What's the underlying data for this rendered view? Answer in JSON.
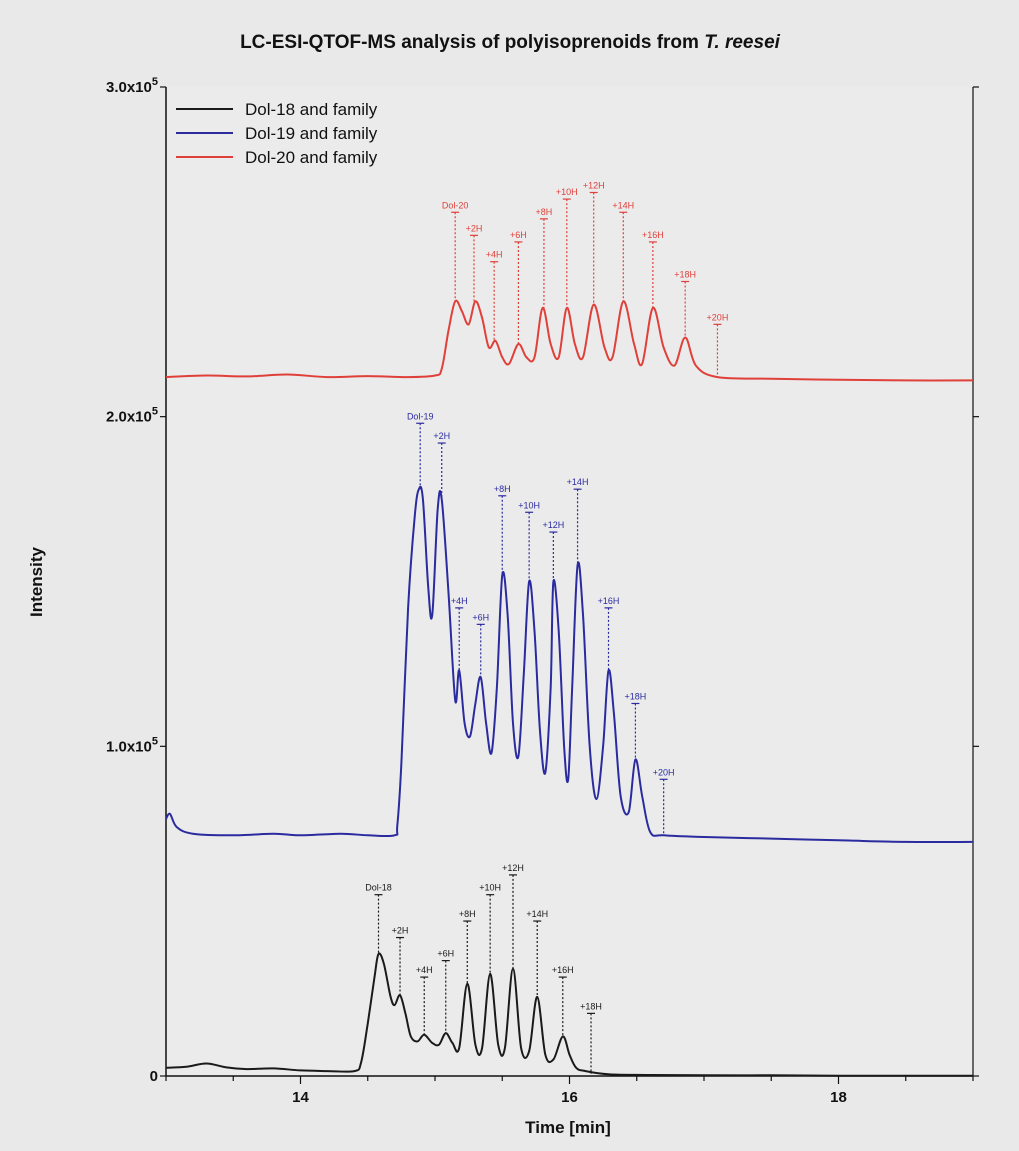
{
  "chart_data": {
    "type": "line",
    "title_main": "LC-ESI-QTOF-MS analysis of polyisoprenoids from ",
    "title_species": "T. reesei",
    "xlabel": "Time [min]",
    "ylabel": "Intensity",
    "xlim": [
      13,
      19
    ],
    "ylim": [
      0,
      300000
    ],
    "x_ticks": [
      {
        "value": 14,
        "label": "14"
      },
      {
        "value": 16,
        "label": "16"
      },
      {
        "value": 18,
        "label": "18"
      }
    ],
    "y_ticks": [
      {
        "value": 0,
        "base": "0",
        "exp": ""
      },
      {
        "value": 100000,
        "base": "1.0x10",
        "exp": "5"
      },
      {
        "value": 200000,
        "base": "2.0x10",
        "exp": "5"
      },
      {
        "value": 300000,
        "base": "3.0x10",
        "exp": "5"
      }
    ],
    "grid": false,
    "legend_position": "top-left",
    "series": [
      {
        "name": "Dol-18 and family",
        "color": "#1a1a1a",
        "points": [
          [
            13.0,
            2500
          ],
          [
            13.15,
            2800
          ],
          [
            13.3,
            3800
          ],
          [
            13.45,
            2600
          ],
          [
            13.6,
            2100
          ],
          [
            13.8,
            2300
          ],
          [
            14.0,
            1700
          ],
          [
            14.2,
            1500
          ],
          [
            14.4,
            1500
          ],
          [
            14.45,
            4000
          ],
          [
            14.5,
            16000
          ],
          [
            14.55,
            30000
          ],
          [
            14.58,
            37000
          ],
          [
            14.62,
            34000
          ],
          [
            14.67,
            24000
          ],
          [
            14.7,
            21500
          ],
          [
            14.74,
            24500
          ],
          [
            14.78,
            19000
          ],
          [
            14.82,
            12000
          ],
          [
            14.87,
            10500
          ],
          [
            14.92,
            12500
          ],
          [
            14.98,
            10000
          ],
          [
            15.03,
            9500
          ],
          [
            15.08,
            13000
          ],
          [
            15.13,
            10000
          ],
          [
            15.18,
            8500
          ],
          [
            15.24,
            28000
          ],
          [
            15.3,
            9500
          ],
          [
            15.35,
            8500
          ],
          [
            15.41,
            31000
          ],
          [
            15.47,
            9500
          ],
          [
            15.52,
            8500
          ],
          [
            15.58,
            32500
          ],
          [
            15.64,
            8500
          ],
          [
            15.7,
            7500
          ],
          [
            15.76,
            24000
          ],
          [
            15.82,
            6500
          ],
          [
            15.88,
            5000
          ],
          [
            15.95,
            12000
          ],
          [
            16.0,
            6500
          ],
          [
            16.05,
            2500
          ],
          [
            16.12,
            1500
          ],
          [
            16.3,
            500
          ],
          [
            16.6,
            300
          ],
          [
            17.0,
            200
          ],
          [
            17.5,
            200
          ],
          [
            18.0,
            100
          ],
          [
            18.5,
            100
          ],
          [
            19.0,
            100
          ]
        ]
      },
      {
        "name": "Dol-19 and family",
        "color": "#2b2ba0",
        "points": [
          [
            13.0,
            78000
          ],
          [
            13.03,
            79500
          ],
          [
            13.08,
            75500
          ],
          [
            13.2,
            73500
          ],
          [
            13.5,
            73000
          ],
          [
            13.8,
            73500
          ],
          [
            14.0,
            73000
          ],
          [
            14.3,
            73500
          ],
          [
            14.5,
            73000
          ],
          [
            14.7,
            73000
          ],
          [
            14.72,
            76000
          ],
          [
            14.75,
            95000
          ],
          [
            14.8,
            142000
          ],
          [
            14.85,
            170000
          ],
          [
            14.88,
            178000
          ],
          [
            14.91,
            175000
          ],
          [
            14.95,
            148000
          ],
          [
            14.98,
            140000
          ],
          [
            15.02,
            172000
          ],
          [
            15.05,
            175000
          ],
          [
            15.1,
            147000
          ],
          [
            15.15,
            114000
          ],
          [
            15.18,
            123000
          ],
          [
            15.22,
            107000
          ],
          [
            15.26,
            103000
          ],
          [
            15.3,
            113000
          ],
          [
            15.34,
            121000
          ],
          [
            15.38,
            107000
          ],
          [
            15.42,
            98000
          ],
          [
            15.46,
            118000
          ],
          [
            15.5,
            152000
          ],
          [
            15.54,
            140000
          ],
          [
            15.58,
            107000
          ],
          [
            15.62,
            97000
          ],
          [
            15.66,
            122000
          ],
          [
            15.7,
            150000
          ],
          [
            15.74,
            135000
          ],
          [
            15.78,
            105000
          ],
          [
            15.82,
            92000
          ],
          [
            15.86,
            118000
          ],
          [
            15.88,
            150000
          ],
          [
            15.92,
            135000
          ],
          [
            15.96,
            100000
          ],
          [
            15.99,
            90000
          ],
          [
            16.02,
            118000
          ],
          [
            16.06,
            155000
          ],
          [
            16.1,
            140000
          ],
          [
            16.15,
            100000
          ],
          [
            16.2,
            84000
          ],
          [
            16.25,
            100000
          ],
          [
            16.29,
            123000
          ],
          [
            16.33,
            110000
          ],
          [
            16.38,
            85000
          ],
          [
            16.44,
            80000
          ],
          [
            16.49,
            96000
          ],
          [
            16.54,
            85000
          ],
          [
            16.6,
            74000
          ],
          [
            16.7,
            73000
          ],
          [
            17.0,
            72500
          ],
          [
            17.5,
            72000
          ],
          [
            18.0,
            71500
          ],
          [
            18.5,
            71000
          ],
          [
            19.0,
            71000
          ]
        ]
      },
      {
        "name": "Dol-20 and family",
        "color": "#e0403a",
        "points": [
          [
            13.0,
            212000
          ],
          [
            13.3,
            212500
          ],
          [
            13.6,
            212200
          ],
          [
            13.9,
            212800
          ],
          [
            14.2,
            212000
          ],
          [
            14.5,
            212300
          ],
          [
            14.8,
            212000
          ],
          [
            15.0,
            212500
          ],
          [
            15.05,
            214500
          ],
          [
            15.1,
            226000
          ],
          [
            15.15,
            235000
          ],
          [
            15.2,
            232000
          ],
          [
            15.25,
            228000
          ],
          [
            15.3,
            235000
          ],
          [
            15.35,
            230000
          ],
          [
            15.4,
            221000
          ],
          [
            15.45,
            223000
          ],
          [
            15.5,
            218000
          ],
          [
            15.55,
            216000
          ],
          [
            15.62,
            222000
          ],
          [
            15.68,
            218000
          ],
          [
            15.74,
            218000
          ],
          [
            15.8,
            233000
          ],
          [
            15.86,
            222000
          ],
          [
            15.92,
            218000
          ],
          [
            15.98,
            233000
          ],
          [
            16.04,
            222000
          ],
          [
            16.1,
            218000
          ],
          [
            16.18,
            234000
          ],
          [
            16.26,
            221000
          ],
          [
            16.32,
            218000
          ],
          [
            16.4,
            235000
          ],
          [
            16.48,
            222000
          ],
          [
            16.54,
            216000
          ],
          [
            16.62,
            233000
          ],
          [
            16.7,
            221000
          ],
          [
            16.78,
            215500
          ],
          [
            16.86,
            224000
          ],
          [
            16.94,
            215500
          ],
          [
            17.1,
            212000
          ],
          [
            17.5,
            211500
          ],
          [
            18.0,
            211200
          ],
          [
            18.5,
            211000
          ],
          [
            19.0,
            211000
          ]
        ]
      }
    ],
    "annotations": [
      {
        "series": 2,
        "label": "Dol-20",
        "x": 15.15,
        "y_peak": 235000,
        "y_top": 262000
      },
      {
        "series": 2,
        "label": "+2H",
        "x": 15.29,
        "y_peak": 234000,
        "y_top": 255000
      },
      {
        "series": 2,
        "label": "+4H",
        "x": 15.44,
        "y_peak": 223000,
        "y_top": 247000
      },
      {
        "series": 2,
        "label": "+6H",
        "x": 15.62,
        "y_peak": 222000,
        "y_top": 253000
      },
      {
        "series": 2,
        "label": "+8H",
        "x": 15.81,
        "y_peak": 233000,
        "y_top": 260000
      },
      {
        "series": 2,
        "label": "+10H",
        "x": 15.98,
        "y_peak": 233000,
        "y_top": 266000
      },
      {
        "series": 2,
        "label": "+12H",
        "x": 16.18,
        "y_peak": 234000,
        "y_top": 268000
      },
      {
        "series": 2,
        "label": "+14H",
        "x": 16.4,
        "y_peak": 235000,
        "y_top": 262000
      },
      {
        "series": 2,
        "label": "+16H",
        "x": 16.62,
        "y_peak": 233000,
        "y_top": 253000
      },
      {
        "series": 2,
        "label": "+18H",
        "x": 16.86,
        "y_peak": 224000,
        "y_top": 241000
      },
      {
        "series": 2,
        "label": "+20H",
        "x": 17.1,
        "y_peak": 212000,
        "y_top": 228000
      },
      {
        "series": 1,
        "label": "Dol-19",
        "x": 14.89,
        "y_peak": 178000,
        "y_top": 198000
      },
      {
        "series": 1,
        "label": "+2H",
        "x": 15.05,
        "y_peak": 175000,
        "y_top": 192000
      },
      {
        "series": 1,
        "label": "+4H",
        "x": 15.18,
        "y_peak": 123000,
        "y_top": 142000
      },
      {
        "series": 1,
        "label": "+6H",
        "x": 15.34,
        "y_peak": 121000,
        "y_top": 137000
      },
      {
        "series": 1,
        "label": "+8H",
        "x": 15.5,
        "y_peak": 152000,
        "y_top": 176000
      },
      {
        "series": 1,
        "label": "+10H",
        "x": 15.7,
        "y_peak": 150000,
        "y_top": 171000
      },
      {
        "series": 1,
        "label": "+12H",
        "x": 15.88,
        "y_peak": 150000,
        "y_top": 165000
      },
      {
        "series": 1,
        "label": "+14H",
        "x": 16.06,
        "y_peak": 155000,
        "y_top": 178000
      },
      {
        "series": 1,
        "label": "+16H",
        "x": 16.29,
        "y_peak": 123000,
        "y_top": 142000
      },
      {
        "series": 1,
        "label": "+18H",
        "x": 16.49,
        "y_peak": 96000,
        "y_top": 113000
      },
      {
        "series": 1,
        "label": "+20H",
        "x": 16.7,
        "y_peak": 73000,
        "y_top": 90000
      },
      {
        "series": 0,
        "label": "Dol-18",
        "x": 14.58,
        "y_peak": 37000,
        "y_top": 55000
      },
      {
        "series": 0,
        "label": "+2H",
        "x": 14.74,
        "y_peak": 24500,
        "y_top": 42000
      },
      {
        "series": 0,
        "label": "+4H",
        "x": 14.92,
        "y_peak": 12500,
        "y_top": 30000
      },
      {
        "series": 0,
        "label": "+6H",
        "x": 15.08,
        "y_peak": 13000,
        "y_top": 35000
      },
      {
        "series": 0,
        "label": "+8H",
        "x": 15.24,
        "y_peak": 28000,
        "y_top": 47000
      },
      {
        "series": 0,
        "label": "+10H",
        "x": 15.41,
        "y_peak": 31000,
        "y_top": 55000
      },
      {
        "series": 0,
        "label": "+12H",
        "x": 15.58,
        "y_peak": 32500,
        "y_top": 61000
      },
      {
        "series": 0,
        "label": "+14H",
        "x": 15.76,
        "y_peak": 24000,
        "y_top": 47000
      },
      {
        "series": 0,
        "label": "+16H",
        "x": 15.95,
        "y_peak": 12000,
        "y_top": 30000
      },
      {
        "series": 0,
        "label": "+18H",
        "x": 16.16,
        "y_peak": 600,
        "y_top": 19000
      }
    ]
  }
}
